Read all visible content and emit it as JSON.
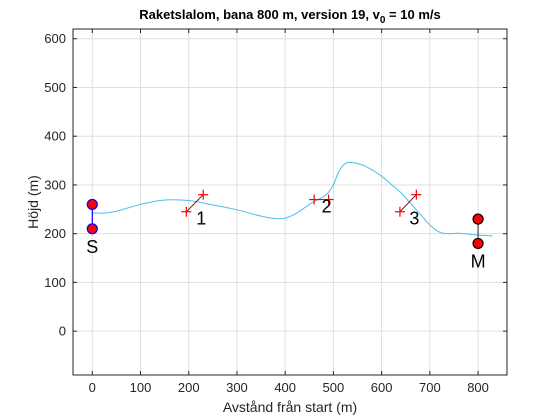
{
  "chart_data": {
    "type": "line",
    "title_main": "Raketslalom, bana 800 m, version 19, v",
    "title_sub": "0",
    "title_tail": " = 10 m/s",
    "xlabel": "Avstånd från start (m)",
    "ylabel": "Höjd (m)",
    "xlim": [
      -40,
      860
    ],
    "ylim": [
      -90,
      620
    ],
    "xticks": [
      0,
      100,
      200,
      300,
      400,
      500,
      600,
      700,
      800
    ],
    "yticks": [
      0,
      100,
      200,
      300,
      400,
      500,
      600
    ],
    "grid": true,
    "colors": {
      "trajectory": "#4DBEEE",
      "gate": "#FF0000",
      "endpoint_fill": "#FF0000",
      "start_edge": "#0000FF",
      "axis": "#262626",
      "grid": "#dfdfdf"
    },
    "trajectory": {
      "x": [
        0,
        20,
        50,
        100,
        150,
        200,
        250,
        300,
        350,
        380,
        400,
        420,
        440,
        460,
        480,
        490,
        500,
        510,
        520,
        530,
        545,
        560,
        580,
        600,
        620,
        640,
        660,
        680,
        700,
        720,
        740,
        760,
        780,
        800,
        820,
        830
      ],
      "y": [
        243,
        242,
        246,
        260,
        269,
        268,
        259,
        249,
        236,
        231,
        232,
        240,
        253,
        266,
        276,
        285,
        300,
        325,
        340,
        346,
        345,
        341,
        331,
        318,
        301,
        284,
        262,
        240,
        218,
        203,
        200,
        201,
        199,
        197,
        196,
        195
      ]
    },
    "start": {
      "label": "S",
      "x": 0,
      "y_top": 260,
      "y_bottom": 210
    },
    "finish": {
      "label": "M",
      "x": 800,
      "y_top": 230,
      "y_bottom": 180
    },
    "gates": [
      {
        "label": "1",
        "x1": 195,
        "y1": 245,
        "x2": 230,
        "y2": 280
      },
      {
        "label": "2",
        "x1": 460,
        "y1": 270,
        "x2": 490,
        "y2": 270
      },
      {
        "label": "3",
        "x1": 638,
        "y1": 245,
        "x2": 672,
        "y2": 280
      }
    ]
  }
}
